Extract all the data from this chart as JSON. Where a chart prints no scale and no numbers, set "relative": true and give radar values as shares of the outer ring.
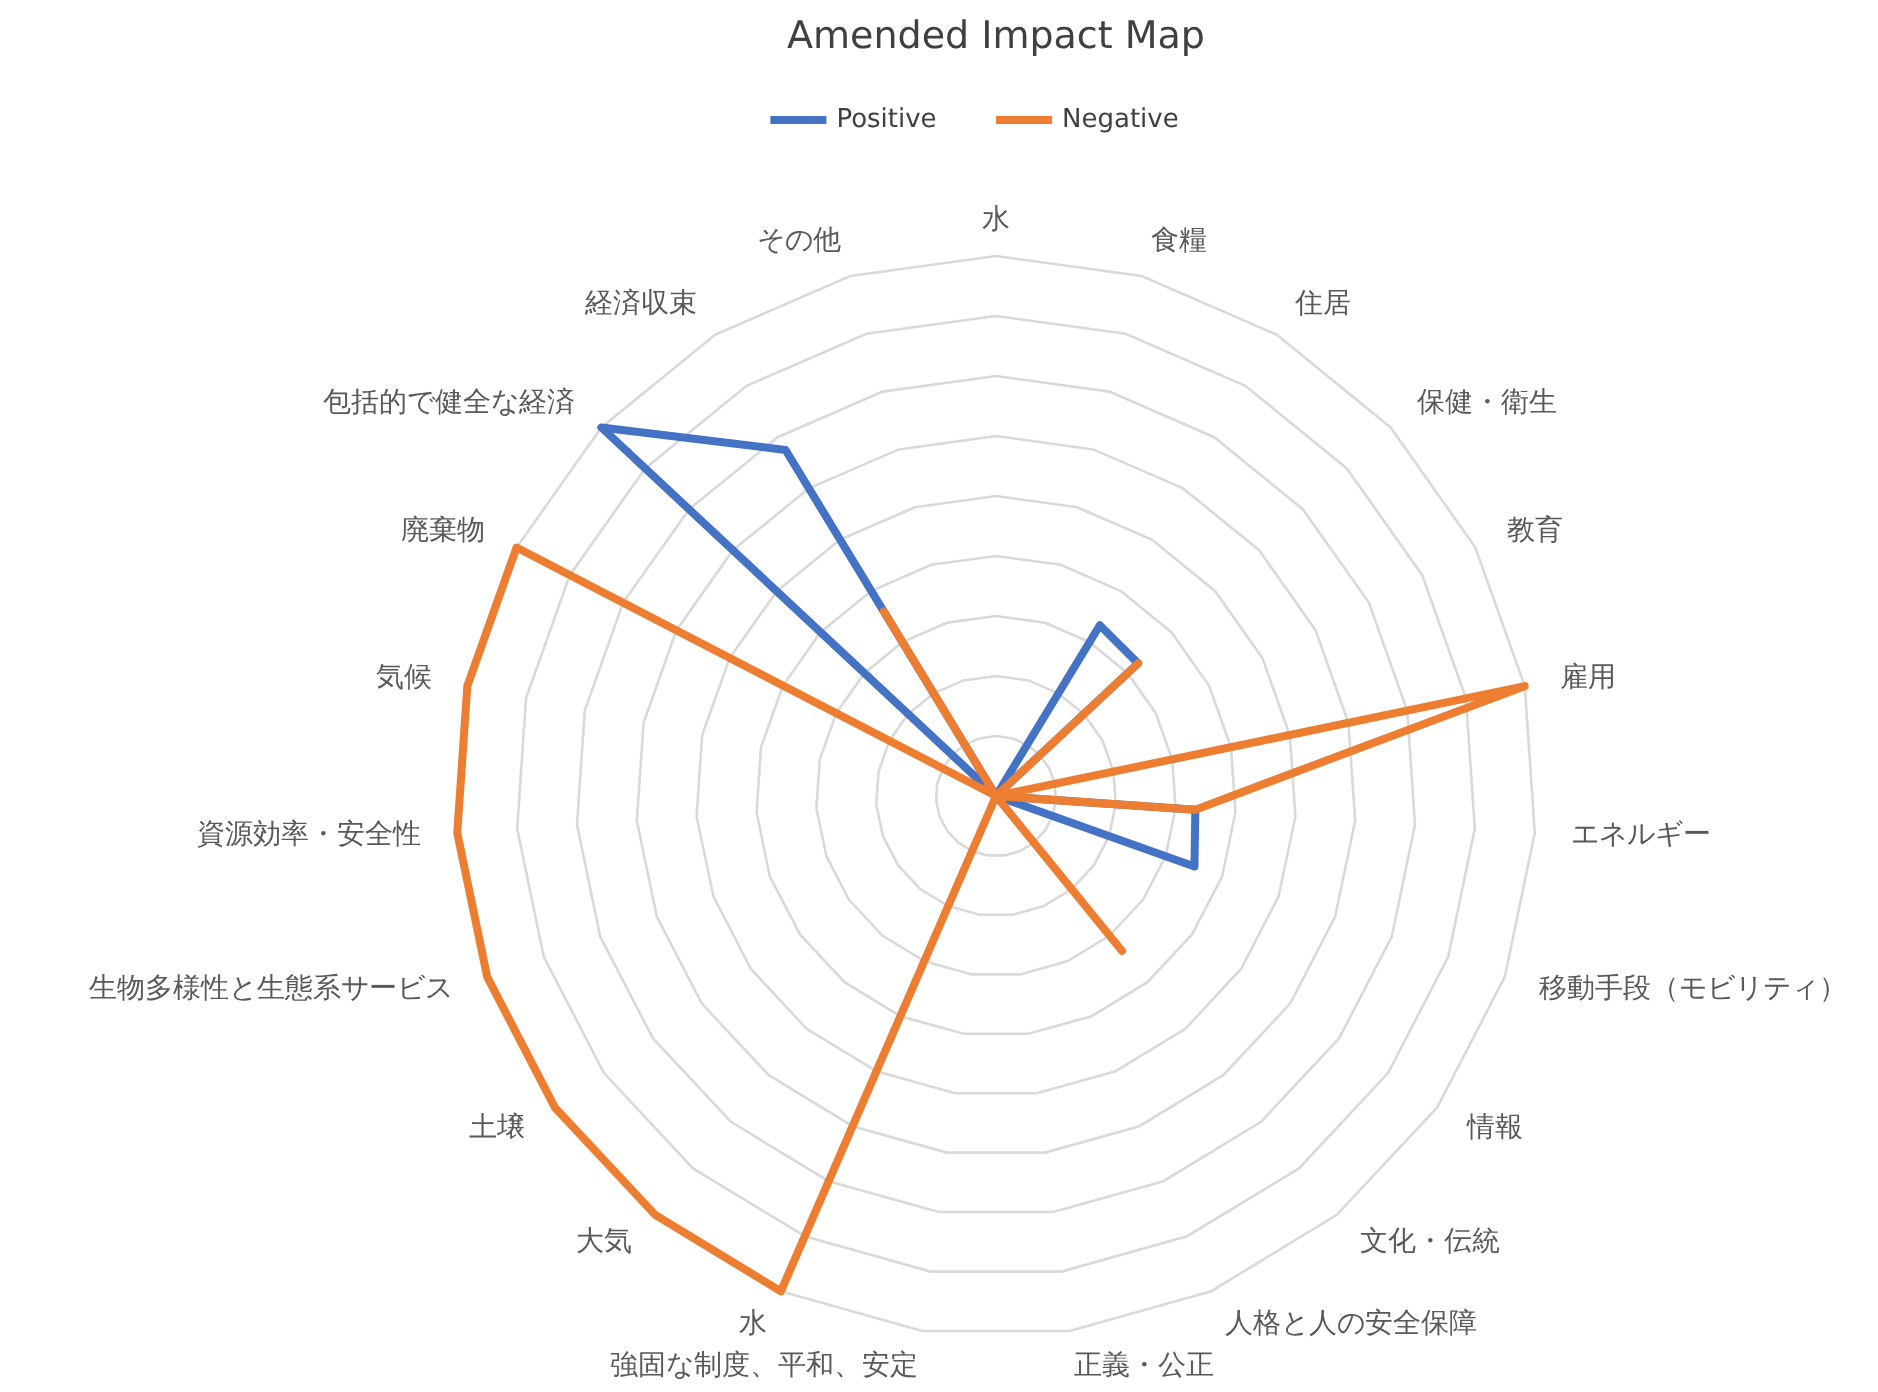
{
  "chart_data": {
    "type": "radar",
    "title": "Amended Impact Map",
    "relative": true,
    "grid": true,
    "legend": "top",
    "categories": [
      "水",
      "食糧",
      "住居",
      "保健・衛生",
      "教育",
      "雇用",
      "エネルギー",
      "移動手段（モビリティ）",
      "情報",
      "文化・伝統",
      "人格と人の安全保障",
      "正義・公正",
      "強固な制度、平和、安定",
      "水",
      "大気",
      "土壌",
      "生物多様性と生態系サービス",
      "資源効率・安全性",
      "気候",
      "廃棄物",
      "包括的で健全な経済",
      "経済収束",
      "その他"
    ],
    "series": [
      {
        "name": "Positive",
        "color": "#4472c4",
        "values": [
          0,
          0,
          0.37,
          0.36,
          0,
          0,
          0.37,
          0.39,
          0,
          0,
          0,
          0,
          0,
          0,
          0,
          0,
          0,
          0,
          0,
          0,
          1,
          0.75,
          0
        ]
      },
      {
        "name": "Negative",
        "color": "#ed7d31",
        "values": [
          0,
          0,
          0,
          0.36,
          0,
          1,
          0.37,
          0,
          0,
          0.37,
          0,
          0,
          0,
          1,
          1,
          1,
          1,
          1,
          1,
          1,
          0,
          0.4,
          0
        ]
      }
    ]
  }
}
